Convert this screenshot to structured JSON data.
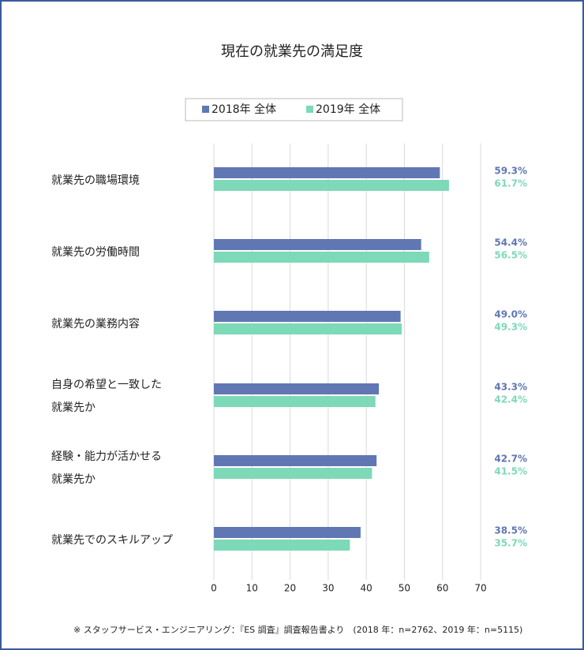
{
  "chart_data": {
    "type": "bar",
    "orientation": "horizontal",
    "title": "現在の就業先の満足度",
    "categories": [
      [
        "就業先の職場環境"
      ],
      [
        "就業先の労働時間"
      ],
      [
        "就業先の業務内容"
      ],
      [
        "自身の希望と一致した",
        "就業先か"
      ],
      [
        "経験・能力が活かせる",
        "就業先か"
      ],
      [
        "就業先でのスキルアップ"
      ]
    ],
    "series": [
      {
        "name": "2018年 全体",
        "color": "#6177b4",
        "values": [
          59.3,
          54.4,
          49.0,
          43.3,
          42.7,
          38.5
        ],
        "value_labels": [
          "59.3%",
          "54.4%",
          "49.0%",
          "43.3%",
          "42.7%",
          "38.5%"
        ]
      },
      {
        "name": "2019年 全体",
        "color": "#7dd9b8",
        "values": [
          61.7,
          56.5,
          49.3,
          42.4,
          41.5,
          35.7
        ],
        "value_labels": [
          "61.7%",
          "56.5%",
          "49.3%",
          "42.4%",
          "41.5%",
          "35.7%"
        ]
      }
    ],
    "xlim": [
      0,
      70
    ],
    "xticks": [
      0,
      10,
      20,
      30,
      40,
      50,
      60,
      70
    ],
    "grid": true,
    "legend": "top",
    "footnote": "※ スタッフサービス・エンジニアリング：『ES 調査』調査報告書より　(2018 年：n=2762、2019 年：n=5115)"
  }
}
